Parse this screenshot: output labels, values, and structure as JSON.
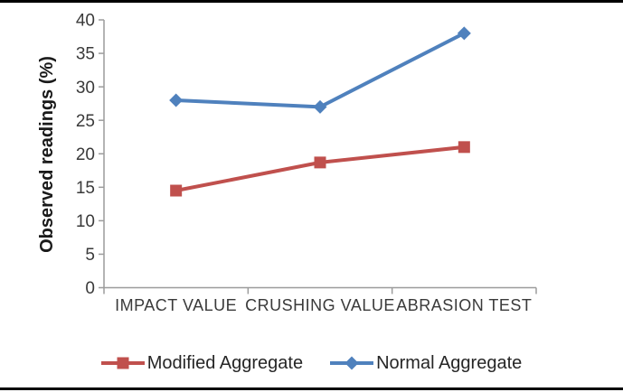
{
  "chart_data": {
    "type": "line",
    "title": "",
    "categories": [
      "IMPACT VALUE",
      "CRUSHING VALUE",
      "ABRASION TEST"
    ],
    "series": [
      {
        "name": "Modified Aggregate",
        "color": "#C0504D",
        "marker": "square",
        "values": [
          14.5,
          18.7,
          21
        ]
      },
      {
        "name": "Normal Aggregate",
        "color": "#4F81BD",
        "marker": "diamond",
        "values": [
          28,
          27,
          38
        ]
      }
    ],
    "xlabel": "",
    "ylabel": "Observed readings (%)",
    "ylim": [
      0,
      40
    ],
    "yticks": [
      0,
      5,
      10,
      15,
      20,
      25,
      30,
      35,
      40
    ],
    "grid": false,
    "legend_position": "bottom",
    "colors": {
      "axis": "#9c9c9c",
      "tick_label": "#3a3a3a",
      "category_label": "#3a3a3a",
      "y_title": "#1a1a1a",
      "legend_text": "#262626",
      "border": "#000000",
      "background": "#ffffff"
    }
  }
}
